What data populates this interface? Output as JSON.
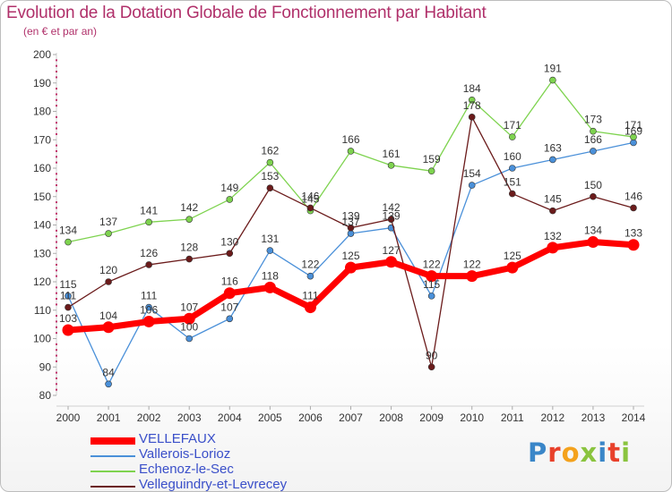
{
  "header": {
    "title": "Evolution de la Dotation Globale de Fonctionnement par Habitant",
    "subtitle": "(en € et par an)"
  },
  "logo": {
    "text": "Proxiti",
    "letters": [
      "P",
      "r",
      "o",
      "x",
      "i",
      "t",
      "i"
    ],
    "colors": [
      "#3a86c8",
      "#e8412b",
      "#f4a21d",
      "#8ac43f",
      "#3a86c8",
      "#e8412b",
      "#8ac43f"
    ]
  },
  "chart_data": {
    "type": "line",
    "x": [
      2000,
      2001,
      2002,
      2003,
      2004,
      2005,
      2006,
      2007,
      2008,
      2009,
      2010,
      2011,
      2012,
      2013,
      2014
    ],
    "ylim": [
      80,
      200
    ],
    "ytick_step": 10,
    "grid": false,
    "legend_position": "bottom-left",
    "series": [
      {
        "name": "VELLEFAUX",
        "color": "#ff0000",
        "thick": true,
        "values": [
          103,
          104,
          106,
          107,
          116,
          118,
          111,
          125,
          127,
          122,
          122,
          125,
          132,
          134,
          133
        ]
      },
      {
        "name": "Vallerois-Lorioz",
        "color": "#4a90d9",
        "thick": false,
        "values": [
          115,
          84,
          111,
          100,
          107,
          131,
          122,
          137,
          139,
          115,
          154,
          160,
          163,
          166,
          169
        ]
      },
      {
        "name": "Echenoz-le-Sec",
        "color": "#7ed34f",
        "thick": false,
        "values": [
          134,
          137,
          141,
          142,
          149,
          162,
          145,
          166,
          161,
          159,
          184,
          171,
          191,
          173,
          171
        ]
      },
      {
        "name": "Velleguindry-et-Levrecey",
        "color": "#6b1b1b",
        "thick": false,
        "values": [
          111,
          120,
          126,
          128,
          130,
          153,
          146,
          139,
          142,
          90,
          178,
          151,
          145,
          150,
          146
        ]
      }
    ]
  }
}
